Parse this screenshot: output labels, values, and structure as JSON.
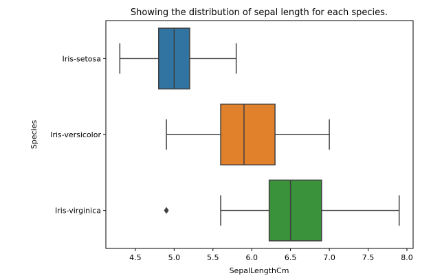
{
  "chart_data": {
    "type": "boxplot",
    "orientation": "horizontal",
    "title": "Showing the distribution of sepal length for each species.",
    "xlabel": "SepalLengthCm",
    "ylabel": "Species",
    "xlim": [
      4.12,
      8.08
    ],
    "xticks": [
      4.5,
      5.0,
      5.5,
      6.0,
      6.5,
      7.0,
      7.5,
      8.0
    ],
    "xtick_labels": [
      "4.5",
      "5.0",
      "5.5",
      "6.0",
      "6.5",
      "7.0",
      "7.5",
      "8.0"
    ],
    "grid": false,
    "categories": [
      "Iris-setosa",
      "Iris-versicolor",
      "Iris-virginica"
    ],
    "boxes": [
      {
        "category": "Iris-setosa",
        "whisker_low": 4.3,
        "q1": 4.8,
        "median": 5.0,
        "q3": 5.2,
        "whisker_high": 5.8,
        "outliers": [],
        "color": "#3274a1"
      },
      {
        "category": "Iris-versicolor",
        "whisker_low": 4.9,
        "q1": 5.6,
        "median": 5.9,
        "q3": 6.3,
        "whisker_high": 7.0,
        "outliers": [],
        "color": "#e1812c"
      },
      {
        "category": "Iris-virginica",
        "whisker_low": 5.6,
        "q1": 6.225,
        "median": 6.5,
        "q3": 6.9,
        "whisker_high": 7.9,
        "outliers": [
          4.9
        ],
        "color": "#3a923a"
      }
    ]
  }
}
